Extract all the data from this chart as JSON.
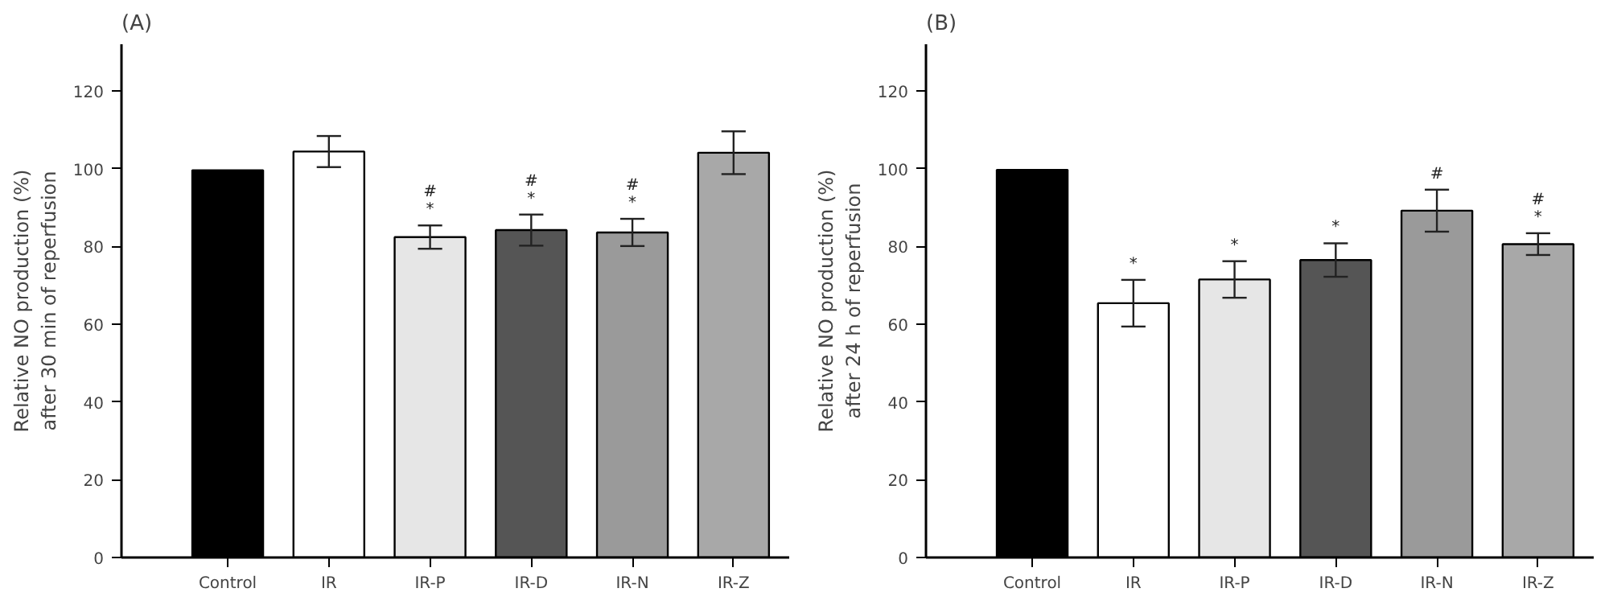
{
  "chart_data": [
    {
      "type": "bar",
      "title": "(A)",
      "ylabel": "Relative NO production (%)\nafter 30 min of reperfusion",
      "categories": [
        "Control",
        "IR",
        "IR-P",
        "IR-D",
        "IR-N",
        "IR-Z"
      ],
      "values": [
        99.6,
        104.4,
        82.4,
        84.2,
        83.6,
        104.1
      ],
      "errors": [
        null,
        4,
        3,
        4,
        3.5,
        5.5
      ],
      "colors": [
        "#000000",
        "#ffffff",
        "#e6e6e6",
        "#555555",
        "#9a9a9a",
        "#a8a8a8"
      ],
      "ylim": [
        0,
        132
      ],
      "yticks": [
        0,
        20,
        40,
        60,
        80,
        100,
        120
      ],
      "grid": false,
      "value_labels": [
        null,
        null,
        "#\n*",
        "#\n*",
        "#\n*",
        null
      ]
    },
    {
      "type": "bar",
      "title": "(B)",
      "ylabel": "Relative NO production (%)\nafter 24 h of reperfusion",
      "categories": [
        "Control",
        "IR",
        "IR-P",
        "IR-D",
        "IR-N",
        "IR-Z"
      ],
      "values": [
        99.7,
        65.4,
        71.5,
        76.5,
        89.2,
        80.6
      ],
      "errors": [
        null,
        6,
        4.7,
        4.3,
        5.4,
        2.8
      ],
      "colors": [
        "#000000",
        "#ffffff",
        "#e6e6e6",
        "#555555",
        "#9a9a9a",
        "#a8a8a8"
      ],
      "ylim": [
        0,
        132
      ],
      "yticks": [
        0,
        20,
        40,
        60,
        80,
        100,
        120
      ],
      "grid": false,
      "value_labels": [
        null,
        "*",
        "*",
        "*",
        "#",
        "#\n*"
      ]
    }
  ]
}
